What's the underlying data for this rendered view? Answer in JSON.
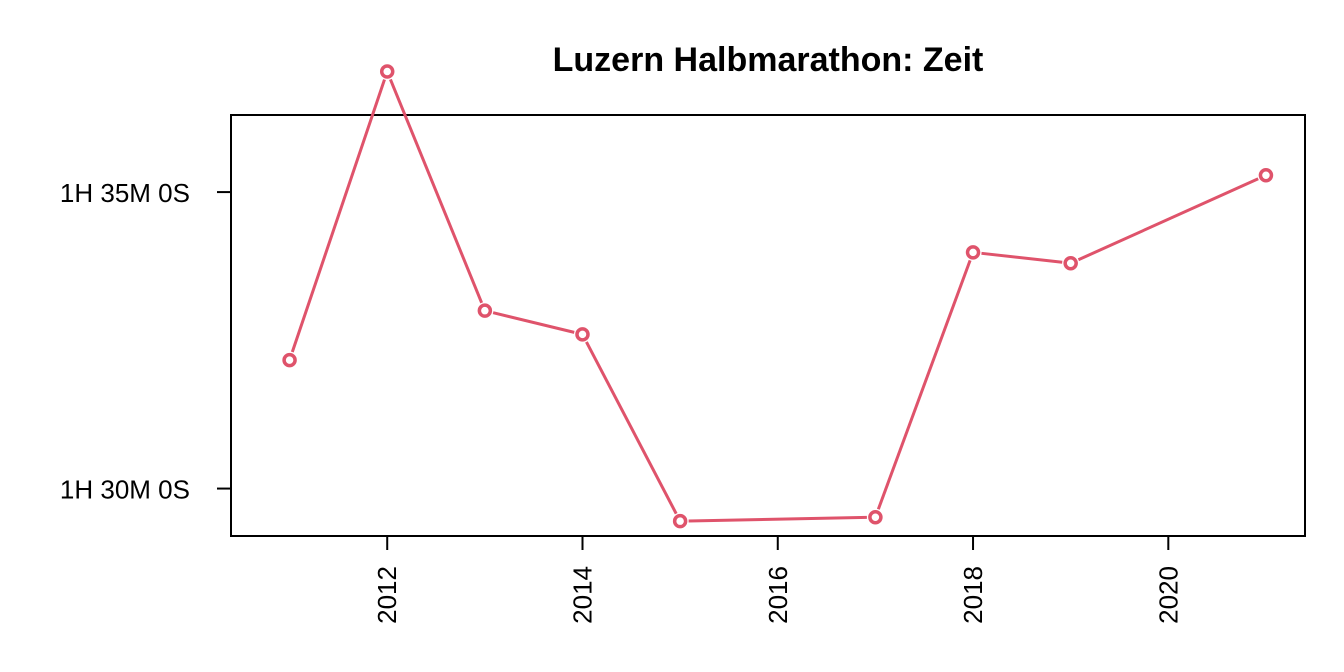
{
  "chart_data": {
    "type": "line",
    "title": "Luzern Halbmarathon: Zeit",
    "xlabel": "",
    "ylabel": "",
    "x": [
      2011,
      2012,
      2013,
      2014,
      2015,
      2017,
      2018,
      2019,
      2021
    ],
    "series": [
      {
        "name": "",
        "y_seconds": [
          5530,
          5822,
          5580,
          5556,
          5367,
          5371,
          5639,
          5628,
          5717
        ],
        "color": "#DF536B"
      }
    ],
    "xlim": [
      2010.4,
      2021.4
    ],
    "ylim_seconds": [
      5352,
      5778
    ],
    "x_ticks": [
      2012,
      2014,
      2016,
      2018,
      2020
    ],
    "x_tick_labels": [
      "2012",
      "2014",
      "2016",
      "2018",
      "2020"
    ],
    "y_ticks_seconds": [
      5400,
      5700
    ],
    "y_tick_labels": [
      "1H 30M 0S",
      "1H 35M 0S"
    ],
    "grid": false,
    "legend": "none",
    "marker": "open-circle"
  }
}
